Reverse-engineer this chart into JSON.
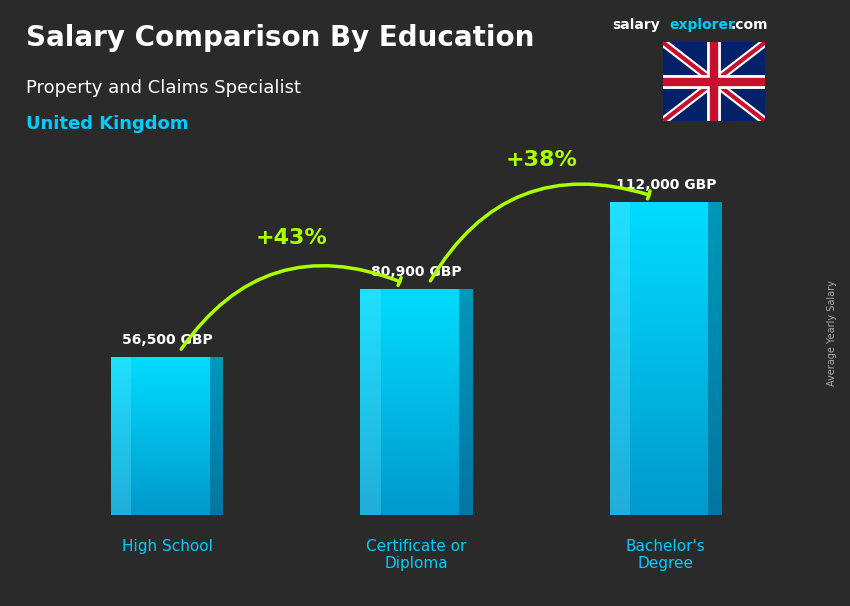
{
  "title_main": "Salary Comparison By Education",
  "title_sub": "Property and Claims Specialist",
  "title_country": "United Kingdom",
  "categories": [
    "High School",
    "Certificate or\nDiploma",
    "Bachelor's\nDegree"
  ],
  "values": [
    56500,
    80900,
    112000
  ],
  "value_labels": [
    "56,500 GBP",
    "80,900 GBP",
    "112,000 GBP"
  ],
  "bar_color_top": "#00d4f5",
  "bar_color_bottom": "#0099cc",
  "bar_color_mid": "#00bbdd",
  "pct_labels": [
    "+43%",
    "+38%"
  ],
  "bg_color": "#2a2a2a",
  "text_color_white": "#ffffff",
  "text_color_cyan": "#00ccff",
  "text_color_green": "#aaff00",
  "arrow_color": "#aaff00",
  "ylabel_side": "Average Yearly Salary",
  "ylim": [
    0,
    130000
  ],
  "bar_width": 0.45,
  "figsize": [
    8.5,
    6.06
  ],
  "dpi": 100
}
